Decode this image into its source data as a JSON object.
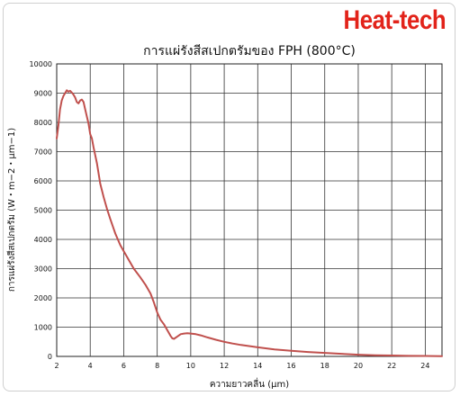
{
  "brand": "Heat-tech",
  "chart_data": {
    "type": "line",
    "title": "การแผ่รังสีสเปกตรัมของ FPH (800°C)",
    "xlabel": "ความยาวคลื่น (μm)",
    "ylabel": "การแผ่รังสีสเปกตรัม (W・m−2・μm−1)",
    "xlim": [
      2,
      25
    ],
    "ylim": [
      0,
      10000
    ],
    "xticks": [
      2,
      4,
      6,
      8,
      10,
      12,
      14,
      16,
      18,
      20,
      22,
      24
    ],
    "yticks": [
      0,
      1000,
      2000,
      3000,
      4000,
      5000,
      6000,
      7000,
      8000,
      9000,
      10000
    ],
    "grid": true,
    "series": [
      {
        "color": "#c0504d",
        "x": [
          2.0,
          2.1,
          2.2,
          2.3,
          2.4,
          2.5,
          2.6,
          2.7,
          2.8,
          2.9,
          3.0,
          3.1,
          3.2,
          3.3,
          3.4,
          3.5,
          3.6,
          3.7,
          3.8,
          3.9,
          4.0,
          4.1,
          4.2,
          4.4,
          4.6,
          4.8,
          5.0,
          5.2,
          5.5,
          5.8,
          6.0,
          6.3,
          6.6,
          7.0,
          7.3,
          7.6,
          7.8,
          8.0,
          8.2,
          8.4,
          8.6,
          8.8,
          8.9,
          9.0,
          9.2,
          9.4,
          9.6,
          9.8,
          10.0,
          10.3,
          10.6,
          11.0,
          11.5,
          12.0,
          12.5,
          13.0,
          14.0,
          15.0,
          16.0,
          17.0,
          18.0,
          19.0,
          20.0,
          21.0,
          22.0,
          23.0,
          24.0,
          25.0
        ],
        "values": [
          7450,
          7900,
          8450,
          8750,
          8900,
          9000,
          9100,
          9050,
          9080,
          9020,
          8950,
          8850,
          8700,
          8650,
          8750,
          8780,
          8700,
          8450,
          8200,
          7950,
          7600,
          7450,
          7150,
          6600,
          5900,
          5450,
          5050,
          4700,
          4200,
          3800,
          3600,
          3300,
          3000,
          2700,
          2450,
          2150,
          1850,
          1500,
          1250,
          1100,
          900,
          700,
          620,
          600,
          680,
          760,
          780,
          790,
          780,
          760,
          720,
          650,
          570,
          500,
          440,
          390,
          310,
          240,
          190,
          150,
          120,
          90,
          60,
          40,
          30,
          20,
          15,
          10
        ]
      }
    ]
  }
}
